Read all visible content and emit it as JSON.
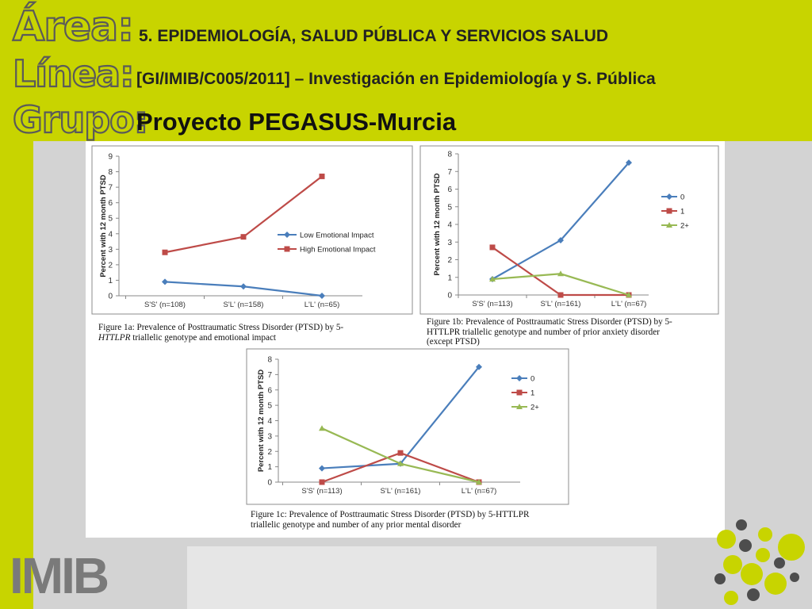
{
  "header": {
    "area_label": "Área:",
    "linea_label": "Línea:",
    "grupo_label": "Grupo:",
    "area_text": "5. EPIDEMIOLOGÍA, SALUD PÚBLICA Y SERVICIOS SALUD",
    "linea_text": "[GI/IMIB/C005/2011] – Investigación en Epidemiología y S. Pública",
    "grupo_text": "Proyecto PEGASUS-Murcia"
  },
  "logo_text": "IMIB",
  "colors": {
    "header": "#c8d400",
    "blue": "#4a7ebb",
    "red": "#be4b48",
    "green": "#98b954"
  },
  "chart_data": [
    {
      "type": "line",
      "ylabel": "Percent with 12 month PTSD",
      "categories": [
        "S'S' (n=108)",
        "S'L' (n=158)",
        "L'L' (n=65)"
      ],
      "ylim": [
        0,
        9
      ],
      "yticks": [
        "0",
        "1",
        "2",
        "3",
        "4",
        "5",
        "6",
        "7",
        "8",
        "9"
      ],
      "legend_position": "right",
      "series": [
        {
          "name": "Low Emotional Impact",
          "values": [
            0.9,
            0.6,
            0.0
          ]
        },
        {
          "name": "High Emotional Impact",
          "values": [
            2.8,
            3.8,
            7.7
          ]
        }
      ],
      "caption": "Figure 1a: Prevalence of Posttraumatic Stress Disorder (PTSD) by 5-HTTLPR triallelic genotype and emotional impact",
      "caption_line1": "Figure 1a: Prevalence of Posttraumatic Stress Disorder (PTSD) by 5-",
      "caption_italic": "HTTLPR",
      "caption_rest": " triallelic genotype and emotional impact"
    },
    {
      "type": "line",
      "ylabel": "Percent with 12 month PTSD",
      "categories": [
        "S'S' (n=113)",
        "S'L' (n=161)",
        "L'L' (n=67)"
      ],
      "ylim": [
        0,
        8
      ],
      "yticks": [
        "0",
        "1",
        "2",
        "3",
        "4",
        "5",
        "6",
        "7",
        "8"
      ],
      "legend_position": "right",
      "series": [
        {
          "name": "0",
          "values": [
            0.9,
            3.1,
            7.5
          ]
        },
        {
          "name": "1",
          "values": [
            2.7,
            0.0,
            0.0
          ]
        },
        {
          "name": "2+",
          "values": [
            0.9,
            1.2,
            0.0
          ]
        }
      ],
      "caption": "Figure 1b: Prevalence of Posttraumatic Stress Disorder (PTSD) by 5-HTTLPR triallelic genotype and number of prior anxiety disorder (except PTSD)",
      "caption_line1": "Figure 1b: Prevalence of Posttraumatic Stress Disorder (PTSD) by 5-",
      "caption_line2": "HTTLPR triallelic genotype and number of prior anxiety disorder",
      "caption_line3": "(except PTSD)"
    },
    {
      "type": "line",
      "ylabel": "Percent with 12 month PTSD",
      "categories": [
        "S'S' (n=113)",
        "S'L' (n=161)",
        "L'L' (n=67)"
      ],
      "ylim": [
        0,
        8
      ],
      "yticks": [
        "0",
        "1",
        "2",
        "3",
        "4",
        "5",
        "6",
        "7",
        "8"
      ],
      "legend_position": "right",
      "series": [
        {
          "name": "0",
          "values": [
            0.9,
            1.2,
            7.5
          ]
        },
        {
          "name": "1",
          "values": [
            0.0,
            1.9,
            0.0
          ]
        },
        {
          "name": "2+",
          "values": [
            3.5,
            1.2,
            0.0
          ]
        }
      ],
      "caption": "Figure 1c: Prevalence of Posttraumatic Stress Disorder (PTSD) by 5-HTTLPR triallelic genotype and number of any prior mental disorder",
      "caption_line1": "Figure 1c: Prevalence of Posttraumatic Stress Disorder (PTSD) by 5-HTTLPR",
      "caption_line2": "triallelic genotype and number of any prior mental disorder"
    }
  ]
}
